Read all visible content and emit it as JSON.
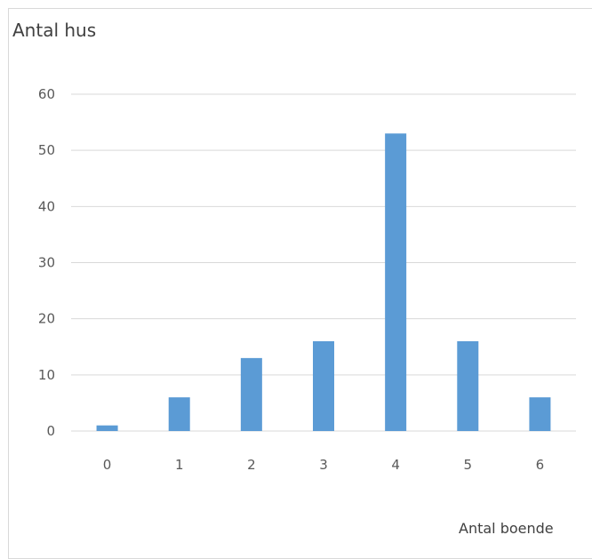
{
  "chart_data": {
    "type": "bar",
    "ylabel": "Antal hus",
    "xlabel": "Antal boende",
    "categories": [
      "0",
      "1",
      "2",
      "3",
      "4",
      "5",
      "6"
    ],
    "values": [
      1,
      6,
      13,
      16,
      53,
      16,
      6
    ],
    "ylim": [
      0,
      60
    ],
    "yticks": [
      "0",
      "10",
      "20",
      "30",
      "40",
      "50",
      "60"
    ],
    "grid": true,
    "bar_color": "#5b9bd5",
    "grid_color": "#d9d9d9",
    "text_color": "#595959"
  }
}
